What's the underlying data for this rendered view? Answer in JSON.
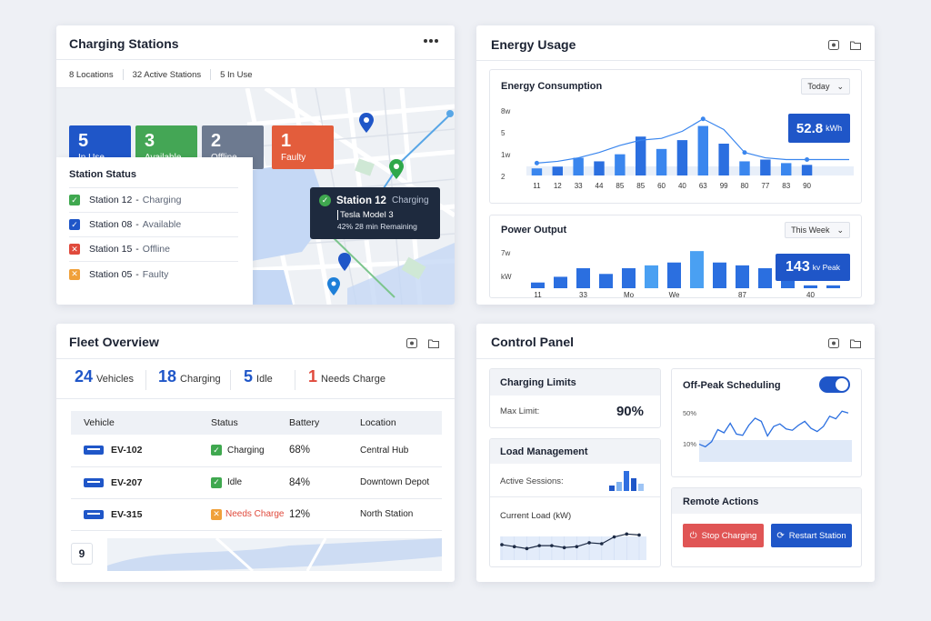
{
  "colors": {
    "accent": "#1f56c8",
    "green": "#3fa84f",
    "red": "#e04a3c",
    "orange": "#f0a03a",
    "gray": "#6e7889",
    "dark": "#1e2a3e"
  },
  "charging": {
    "title": "Charging Stations",
    "menu_icon": "more-icon",
    "summary": {
      "locations": "8 Locations",
      "active": "32 Active Stations",
      "inuse": "5 In Use"
    },
    "tiles": [
      {
        "num": "5",
        "label": "In Use",
        "color": "#1f56c8"
      },
      {
        "num": "3",
        "label": "Available",
        "color": "#44a655"
      },
      {
        "num": "2",
        "label": "Offline",
        "color": "#6d7a90"
      },
      {
        "num": "1",
        "label": "Faulty",
        "color": "#e35d3c"
      }
    ],
    "status_title": "Station Status",
    "status": [
      {
        "name": "Station 12",
        "state": "Charging",
        "mark": "✓",
        "color": "#3fa84f"
      },
      {
        "name": "Station 08",
        "state": "Available",
        "mark": "✓",
        "color": "#1f56c8"
      },
      {
        "name": "Station 15",
        "state": "Offline",
        "mark": "✕",
        "color": "#e04a3c"
      },
      {
        "name": "Station 05",
        "state": "Faulty",
        "mark": "✕",
        "color": "#f0a03a"
      }
    ],
    "sep": "-",
    "tooltip": {
      "station": "Station 12",
      "state": "Charging",
      "vehicle": "Tesla Model 3",
      "detail": "42% 28 min Remaining"
    }
  },
  "energy": {
    "title": "Energy Usage",
    "consumption": {
      "title": "Energy Consumption",
      "range": "Today",
      "yticks": [
        "8w",
        "5",
        "1w",
        "2"
      ],
      "badge_value": "52.8",
      "badge_unit": "kWh"
    },
    "power": {
      "title": "Power Output",
      "range": "This Week",
      "yticks": [
        "7w",
        "kW"
      ],
      "badge_value": "143",
      "badge_unit": "kv Peak"
    }
  },
  "chart_data": [
    {
      "type": "bar",
      "title": "Energy Consumption",
      "categories": [
        "11",
        "12",
        "33",
        "44",
        "85",
        "85",
        "60",
        "40",
        "63",
        "99",
        "80",
        "77",
        "83",
        "90"
      ],
      "values": [
        2,
        2.5,
        5,
        4,
        6,
        11,
        7.5,
        10,
        14,
        9,
        4,
        4.5,
        3.5,
        3
      ],
      "line": [
        3.5,
        4,
        5,
        6.5,
        8.5,
        10,
        10.5,
        12.5,
        16,
        13,
        6.5,
        5,
        4.5,
        4.5
      ],
      "ylim": [
        0,
        18
      ]
    },
    {
      "type": "bar",
      "title": "Power Output",
      "categories": [
        "11",
        "",
        "33",
        "",
        "Mo",
        "",
        "We",
        "",
        "",
        "87",
        "",
        "",
        "40",
        ""
      ],
      "values": [
        2,
        4,
        7,
        5,
        7,
        8,
        9,
        13,
        9,
        8,
        7,
        5,
        1,
        1
      ],
      "ylim": [
        0,
        14
      ]
    },
    {
      "type": "line",
      "title": "Off-Peak Scheduling",
      "yticks": [
        "50%",
        "10%"
      ],
      "values": [
        22,
        18,
        26,
        45,
        40,
        55,
        38,
        36,
        52,
        63,
        58,
        35,
        50,
        54,
        46,
        44,
        52,
        58,
        47,
        42,
        50,
        66,
        62,
        74,
        71
      ]
    },
    {
      "type": "line",
      "title": "Current Load (kW)",
      "values": [
        14,
        12,
        10,
        13,
        13,
        11,
        12,
        16,
        15,
        22,
        25,
        24
      ]
    }
  ],
  "fleet": {
    "title": "Fleet Overview",
    "kpis": [
      {
        "num": "24",
        "label": "Vehicles",
        "color": "#1f56c8"
      },
      {
        "num": "18",
        "label": "Charging",
        "color": "#1f56c8"
      },
      {
        "num": "5",
        "label": "Idle",
        "color": "#1f56c8"
      },
      {
        "num": "1",
        "label": "Needs Charge",
        "color": "#e04a3c"
      }
    ],
    "columns": [
      "Vehicle",
      "Status",
      "Battery",
      "Location"
    ],
    "rows": [
      {
        "vehicle": "EV-102",
        "status": "Charging",
        "mark": "✓",
        "color": "#3fa84f",
        "battery": "68%",
        "location": "Central Hub"
      },
      {
        "vehicle": "EV-207",
        "status": "Idle",
        "mark": "✓",
        "color": "#3fa84f",
        "battery": "84%",
        "location": "Downtown Depot"
      },
      {
        "vehicle": "EV-315",
        "status": "Needs Charge",
        "mark": "✕",
        "color": "#f0a03a",
        "battery": "12%",
        "location": "North Station"
      }
    ],
    "footer_badge": "9"
  },
  "control": {
    "title": "Control Panel",
    "limits": {
      "title": "Charging Limits",
      "label": "Max Limit:",
      "value": "90%"
    },
    "load": {
      "title": "Load Management",
      "sessions_label": "Active Sessions:",
      "current_label": "Current Load (kW)"
    },
    "offpeak": {
      "title": "Off-Peak Scheduling",
      "enabled": true
    },
    "remote": {
      "title": "Remote Actions",
      "stop": "Stop Charging",
      "restart": "Restart Station"
    }
  }
}
